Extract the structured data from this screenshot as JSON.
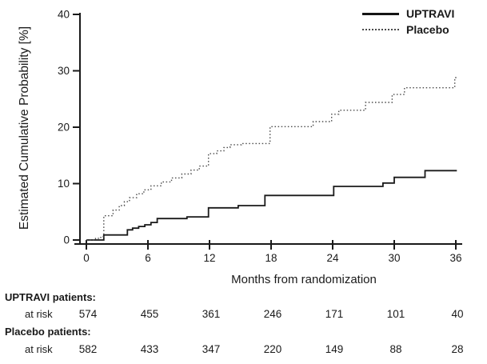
{
  "figure": {
    "background": "#ffffff",
    "axis_color": "#1a1a1a",
    "solid_series_color": "#1a1a1a",
    "dotted_series_color": "#4a4a4a"
  },
  "chart_data": {
    "type": "line",
    "subtype": "kaplan-meier-step",
    "title": "",
    "xlabel": "Months from randomization",
    "ylabel": "Estimated Cumulative Probability [%]",
    "xlim": [
      0,
      36
    ],
    "ylim": [
      0,
      40
    ],
    "xticks": [
      0,
      6,
      12,
      18,
      24,
      30,
      36
    ],
    "yticks": [
      0,
      10,
      20,
      30,
      40
    ],
    "grid": false,
    "legend_position": "top-right",
    "series": [
      {
        "name": "UPTRAVI",
        "line_style": "solid",
        "color": "#1a1a1a",
        "steps": [
          [
            0,
            0
          ],
          [
            1.7,
            0.9
          ],
          [
            4.0,
            1.8
          ],
          [
            4.5,
            2.1
          ],
          [
            5.1,
            2.4
          ],
          [
            5.7,
            2.7
          ],
          [
            6.3,
            3.1
          ],
          [
            6.9,
            3.8
          ],
          [
            9.8,
            4.1
          ],
          [
            11.9,
            5.7
          ],
          [
            14.8,
            6.1
          ],
          [
            17.4,
            7.9
          ],
          [
            24.1,
            9.5
          ],
          [
            28.9,
            10.1
          ],
          [
            30.0,
            11.1
          ],
          [
            33.0,
            12.3
          ],
          [
            36.1,
            12.3
          ]
        ]
      },
      {
        "name": "Placebo",
        "line_style": "dotted",
        "color": "#4a4a4a",
        "steps": [
          [
            0,
            0
          ],
          [
            0.9,
            0.3
          ],
          [
            1.4,
            0.6
          ],
          [
            1.7,
            4.3
          ],
          [
            2.6,
            5.3
          ],
          [
            3.2,
            6.1
          ],
          [
            3.7,
            6.8
          ],
          [
            4.2,
            7.5
          ],
          [
            4.9,
            8.2
          ],
          [
            5.6,
            8.9
          ],
          [
            6.3,
            9.6
          ],
          [
            7.3,
            10.3
          ],
          [
            8.3,
            11.0
          ],
          [
            9.3,
            11.7
          ],
          [
            10.2,
            12.4
          ],
          [
            11.0,
            13.1
          ],
          [
            11.9,
            15.3
          ],
          [
            12.7,
            15.8
          ],
          [
            13.4,
            16.4
          ],
          [
            14.0,
            16.9
          ],
          [
            15.1,
            17.1
          ],
          [
            17.9,
            20.1
          ],
          [
            22.1,
            21.0
          ],
          [
            23.9,
            22.3
          ],
          [
            24.6,
            23.0
          ],
          [
            27.2,
            24.4
          ],
          [
            29.8,
            25.8
          ],
          [
            31.0,
            27.0
          ],
          [
            35.9,
            28.8
          ],
          [
            36.2,
            28.8
          ]
        ]
      }
    ]
  },
  "legend": {
    "items": [
      {
        "label": "UPTRAVI",
        "line": "solid"
      },
      {
        "label": "Placebo",
        "line": "dotted"
      }
    ]
  },
  "risk_table": {
    "months": [
      0,
      6,
      12,
      18,
      24,
      30,
      36
    ],
    "groups": [
      {
        "label": "UPTRAVI patients:",
        "row_label": "at risk",
        "counts": [
          "574",
          "455",
          "361",
          "246",
          "171",
          "101",
          "40"
        ]
      },
      {
        "label": "Placebo patients:",
        "row_label": "at risk",
        "counts": [
          "582",
          "433",
          "347",
          "220",
          "149",
          "88",
          "28"
        ]
      }
    ]
  }
}
